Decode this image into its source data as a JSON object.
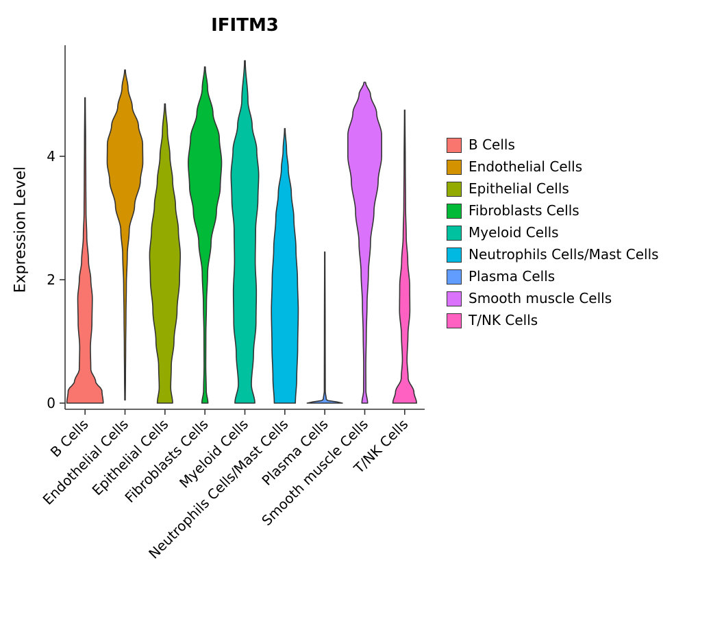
{
  "title": "IFITM3",
  "axes": {
    "ylabel": "Expression Level",
    "ytick_labels": [
      "0",
      "2",
      "4"
    ]
  },
  "chart_data": {
    "type": "violin",
    "title": "IFITM3",
    "xlabel": "",
    "ylabel": "Expression Level",
    "ylim": [
      0,
      5.8
    ],
    "yticks": [
      0,
      2,
      4
    ],
    "grid": false,
    "legend_position": "right",
    "profile_format": "density_profile entries are [expression_level, relative_violin_width_0_to_1]",
    "categories": [
      "B Cells",
      "Endothelial Cells",
      "Epithelial Cells",
      "Fibroblasts Cells",
      "Myeloid Cells",
      "Neutrophils Cells/Mast Cells",
      "Plasma Cells",
      "Smooth muscle Cells",
      "T/NK Cells"
    ],
    "series": [
      {
        "name": "B Cells",
        "color": "#F8766D",
        "expression_min": 0,
        "expression_max": 4.95,
        "density_profile": [
          [
            0,
            0.95
          ],
          [
            0.2,
            0.88
          ],
          [
            0.35,
            0.55
          ],
          [
            0.55,
            0.3
          ],
          [
            0.9,
            0.28
          ],
          [
            1.3,
            0.36
          ],
          [
            1.7,
            0.38
          ],
          [
            2.0,
            0.3
          ],
          [
            2.3,
            0.18
          ],
          [
            2.7,
            0.09
          ],
          [
            3.1,
            0.05
          ],
          [
            3.6,
            0.04
          ],
          [
            4.2,
            0.03
          ],
          [
            4.95,
            0.012
          ]
        ]
      },
      {
        "name": "Endothelial Cells",
        "color": "#D39200",
        "expression_min": 0.05,
        "expression_max": 5.4,
        "density_profile": [
          [
            0.05,
            0.015
          ],
          [
            0.4,
            0.025
          ],
          [
            0.9,
            0.035
          ],
          [
            1.4,
            0.05
          ],
          [
            1.9,
            0.07
          ],
          [
            2.4,
            0.12
          ],
          [
            2.8,
            0.22
          ],
          [
            3.2,
            0.5
          ],
          [
            3.6,
            0.8
          ],
          [
            3.9,
            0.93
          ],
          [
            4.2,
            0.92
          ],
          [
            4.5,
            0.7
          ],
          [
            4.8,
            0.38
          ],
          [
            5.1,
            0.16
          ],
          [
            5.4,
            0.02
          ]
        ]
      },
      {
        "name": "Epithelial Cells",
        "color": "#93AA00",
        "expression_min": 0,
        "expression_max": 4.85,
        "density_profile": [
          [
            0,
            0.4
          ],
          [
            0.25,
            0.3
          ],
          [
            0.6,
            0.33
          ],
          [
            1.0,
            0.47
          ],
          [
            1.5,
            0.63
          ],
          [
            2.0,
            0.76
          ],
          [
            2.4,
            0.8
          ],
          [
            2.8,
            0.7
          ],
          [
            3.2,
            0.55
          ],
          [
            3.6,
            0.4
          ],
          [
            4.0,
            0.26
          ],
          [
            4.4,
            0.13
          ],
          [
            4.85,
            0.02
          ]
        ]
      },
      {
        "name": "Fibroblasts Cells",
        "color": "#00BA38",
        "expression_min": 0,
        "expression_max": 5.45,
        "density_profile": [
          [
            0,
            0.16
          ],
          [
            0.2,
            0.07
          ],
          [
            0.6,
            0.045
          ],
          [
            1.1,
            0.05
          ],
          [
            1.6,
            0.08
          ],
          [
            2.1,
            0.14
          ],
          [
            2.6,
            0.32
          ],
          [
            3.1,
            0.6
          ],
          [
            3.5,
            0.8
          ],
          [
            3.9,
            0.87
          ],
          [
            4.3,
            0.75
          ],
          [
            4.7,
            0.42
          ],
          [
            5.1,
            0.14
          ],
          [
            5.45,
            0.02
          ]
        ]
      },
      {
        "name": "Myeloid Cells",
        "color": "#00C19F",
        "expression_min": 0,
        "expression_max": 5.55,
        "density_profile": [
          [
            0,
            0.52
          ],
          [
            0.3,
            0.34
          ],
          [
            0.8,
            0.45
          ],
          [
            1.3,
            0.58
          ],
          [
            1.8,
            0.6
          ],
          [
            2.3,
            0.54
          ],
          [
            2.8,
            0.56
          ],
          [
            3.3,
            0.68
          ],
          [
            3.7,
            0.72
          ],
          [
            4.1,
            0.62
          ],
          [
            4.5,
            0.38
          ],
          [
            4.9,
            0.16
          ],
          [
            5.55,
            0.02
          ]
        ]
      },
      {
        "name": "Neutrophils Cells/Mast Cells",
        "color": "#00B9E3",
        "expression_min": 0,
        "expression_max": 4.45,
        "density_profile": [
          [
            0,
            0.55
          ],
          [
            0.4,
            0.62
          ],
          [
            0.9,
            0.67
          ],
          [
            1.5,
            0.7
          ],
          [
            2.0,
            0.66
          ],
          [
            2.5,
            0.58
          ],
          [
            3.0,
            0.47
          ],
          [
            3.4,
            0.34
          ],
          [
            3.8,
            0.18
          ],
          [
            4.1,
            0.09
          ],
          [
            4.45,
            0.015
          ]
        ]
      },
      {
        "name": "Plasma Cells",
        "color": "#619CFF",
        "expression_min": 0,
        "expression_max": 2.45,
        "density_profile": [
          [
            0,
            0.92
          ],
          [
            0.05,
            0.08
          ],
          [
            0.2,
            0.025
          ],
          [
            1.2,
            0.02
          ],
          [
            2.45,
            0.01
          ]
        ]
      },
      {
        "name": "Smooth muscle Cells",
        "color": "#DB72FB",
        "expression_min": 0,
        "expression_max": 5.2,
        "density_profile": [
          [
            0,
            0.15
          ],
          [
            0.2,
            0.06
          ],
          [
            0.6,
            0.055
          ],
          [
            1.1,
            0.08
          ],
          [
            1.6,
            0.12
          ],
          [
            2.1,
            0.19
          ],
          [
            2.6,
            0.3
          ],
          [
            3.1,
            0.48
          ],
          [
            3.6,
            0.7
          ],
          [
            4.0,
            0.88
          ],
          [
            4.35,
            0.88
          ],
          [
            4.7,
            0.62
          ],
          [
            5.0,
            0.3
          ],
          [
            5.2,
            0.04
          ]
        ]
      },
      {
        "name": "T/NK Cells",
        "color": "#FF61C3",
        "expression_min": 0,
        "expression_max": 4.75,
        "density_profile": [
          [
            0,
            0.62
          ],
          [
            0.18,
            0.48
          ],
          [
            0.4,
            0.18
          ],
          [
            0.7,
            0.12
          ],
          [
            1.1,
            0.17
          ],
          [
            1.5,
            0.27
          ],
          [
            1.9,
            0.26
          ],
          [
            2.3,
            0.16
          ],
          [
            2.7,
            0.08
          ],
          [
            3.2,
            0.045
          ],
          [
            3.9,
            0.03
          ],
          [
            4.75,
            0.012
          ]
        ]
      }
    ]
  }
}
